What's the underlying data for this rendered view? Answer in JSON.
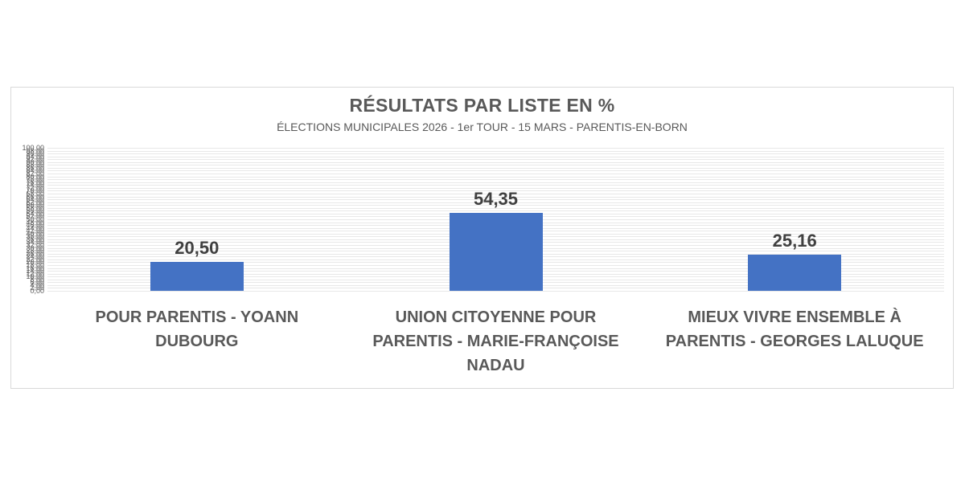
{
  "chart_data": {
    "type": "bar",
    "title": "RÉSULTATS PAR LISTE EN %",
    "subtitle": "ÉLECTIONS MUNICIPALES 2026 - 1er TOUR - 15 MARS - PARENTIS-EN-BORN",
    "categories": [
      "POUR PARENTIS - YOANN DUBOURG",
      "UNION CITOYENNE POUR PARENTIS - MARIE-FRANÇOISE NADAU",
      "MIEUX VIVRE ENSEMBLE À PARENTIS - GEORGES LALUQUE"
    ],
    "category_display_lines": [
      [
        "POUR PARENTIS - YOANN",
        "DUBOURG"
      ],
      [
        "UNION CITOYENNE POUR",
        "PARENTIS - MARIE-FRANÇOISE",
        "NADAU"
      ],
      [
        "MIEUX VIVRE ENSEMBLE À",
        "PARENTIS - GEORGES LALUQUE"
      ]
    ],
    "values": [
      20.5,
      54.35,
      25.16
    ],
    "value_labels": [
      "20,50",
      "54,35",
      "25,16"
    ],
    "xlabel": "",
    "ylabel": "",
    "y_axis": {
      "min": 0,
      "max": 100,
      "step": 2,
      "decimals": 2,
      "decimal_separator": ",",
      "first_tick_label": "0,00",
      "last_tick_label": "100,00"
    },
    "ylim": [
      0,
      100
    ],
    "gridlines": true,
    "legend": "none",
    "bar_color": "#4472C4",
    "colors": {
      "title": "#595959",
      "subtitle": "#595959",
      "data_label": "#404040",
      "category_label": "#595959",
      "axis_tick": "#595959",
      "gridline": "#E8E8E8",
      "frame_border": "#D9D9D9",
      "background": "#FFFFFF"
    }
  }
}
